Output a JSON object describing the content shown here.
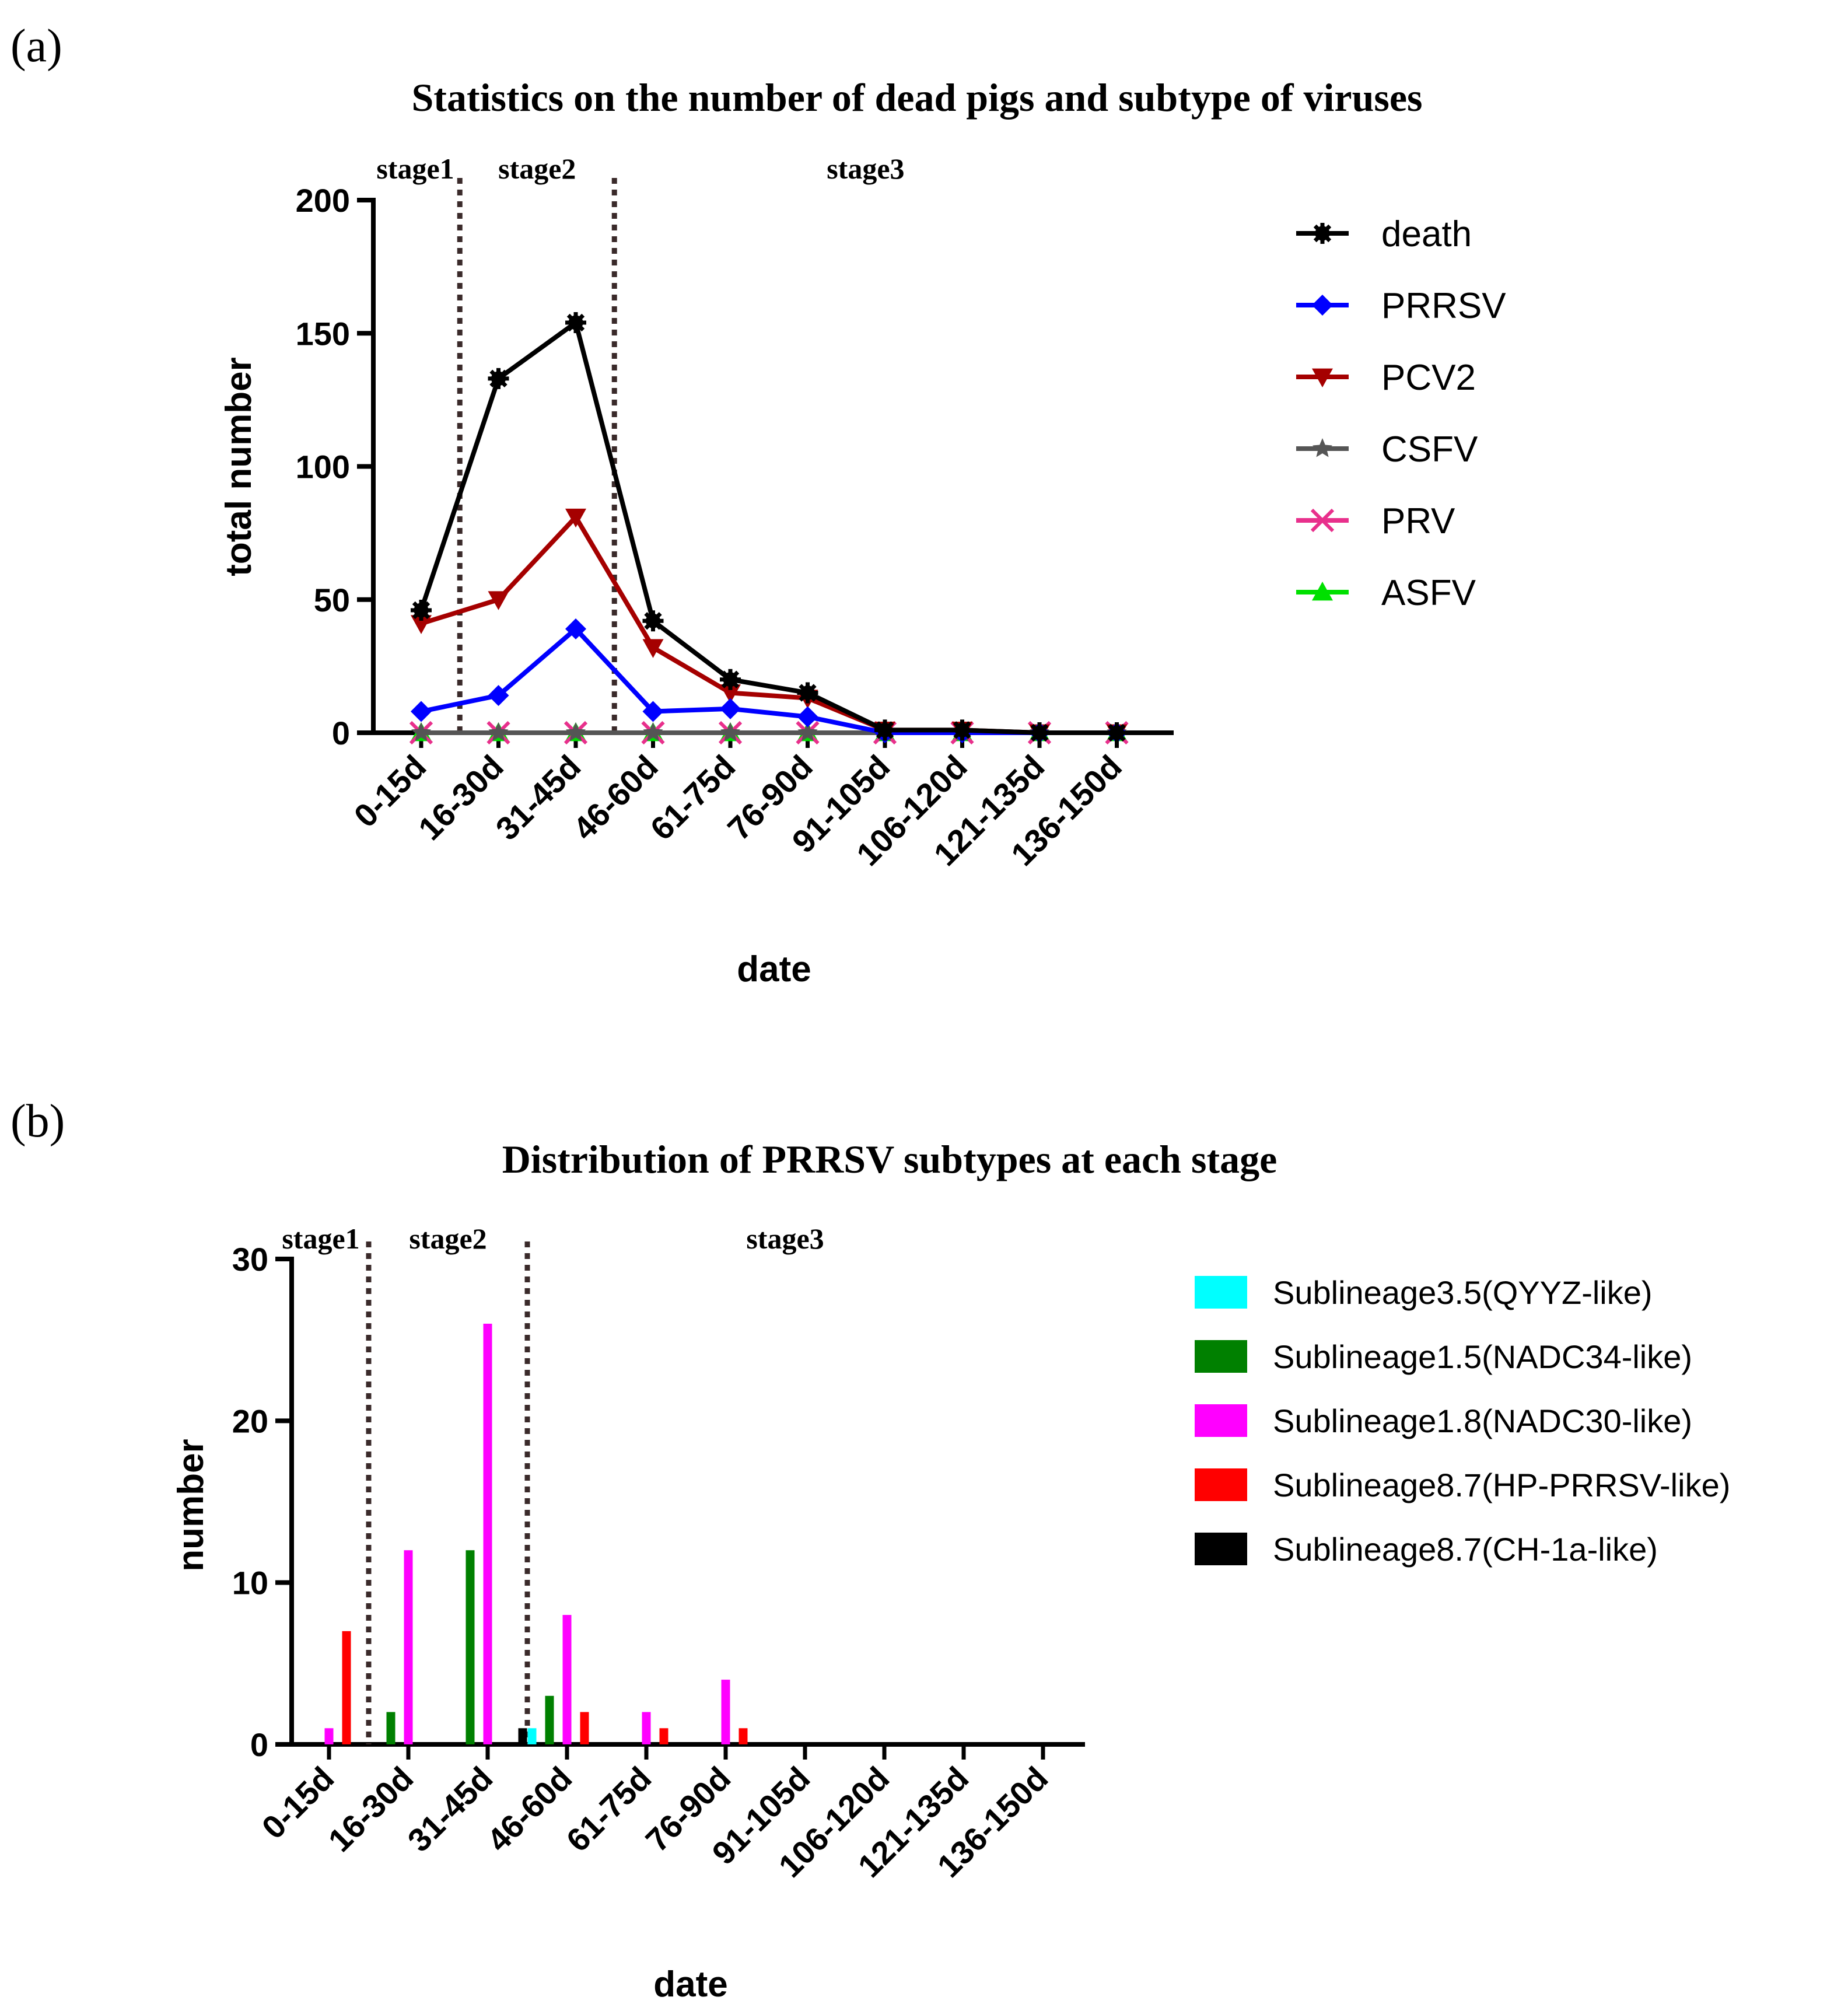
{
  "chart_data": [
    {
      "panel": "(a)",
      "type": "line",
      "title": "Statistics on the number of dead pigs and subtype of viruses",
      "xlabel": "date",
      "ylabel": "total number",
      "ylim": [
        0,
        200
      ],
      "yticks": [
        0,
        50,
        100,
        150,
        200
      ],
      "categories": [
        "0-15d",
        "16-30d",
        "31-45d",
        "46-60d",
        "61-75d",
        "76-90d",
        "91-105d",
        "106-120d",
        "121-135d",
        "136-150d"
      ],
      "stages": [
        {
          "label": "stage1",
          "from": 0,
          "to": 0.5
        },
        {
          "label": "stage2",
          "from": 0.5,
          "to": 2.5
        },
        {
          "label": "stage3",
          "from": 2.5,
          "to": 9
        }
      ],
      "series": [
        {
          "name": "death",
          "color": "#000000",
          "marker": "asterisk",
          "values": [
            46,
            133,
            154,
            42,
            20,
            15,
            1,
            1,
            0,
            0
          ]
        },
        {
          "name": "PRRSV",
          "color": "#0000ff",
          "marker": "diamond",
          "values": [
            8,
            14,
            39,
            8,
            9,
            6,
            0,
            0,
            0,
            0
          ]
        },
        {
          "name": "PCV2",
          "color": "#a50000",
          "marker": "triangle-down",
          "values": [
            41,
            50,
            81,
            32,
            15,
            13,
            1,
            1,
            0,
            0
          ]
        },
        {
          "name": "CSFV",
          "color": "#555555",
          "marker": "star",
          "values": [
            0,
            0,
            0,
            0,
            0,
            0,
            0,
            0,
            0,
            0
          ]
        },
        {
          "name": "PRV",
          "color": "#e8308c",
          "marker": "x",
          "values": [
            0,
            0,
            0,
            0,
            0,
            0,
            0,
            0,
            0,
            0
          ]
        },
        {
          "name": "ASFV",
          "color": "#00e000",
          "marker": "triangle-up",
          "values": [
            0,
            0,
            0,
            0,
            0,
            0,
            0,
            0,
            0,
            0
          ]
        }
      ],
      "legend": "right"
    },
    {
      "panel": "(b)",
      "type": "bar",
      "title": "Distribution of PRRSV subtypes at each stage",
      "xlabel": "date",
      "ylabel": "number",
      "ylim": [
        0,
        30
      ],
      "yticks": [
        0,
        10,
        20,
        30
      ],
      "categories": [
        "0-15d",
        "16-30d",
        "31-45d",
        "46-60d",
        "61-75d",
        "76-90d",
        "91-105d",
        "106-120d",
        "121-135d",
        "136-150d"
      ],
      "stages": [
        {
          "label": "stage1",
          "from": 0,
          "to": 0.5
        },
        {
          "label": "stage2",
          "from": 0.5,
          "to": 2.5
        },
        {
          "label": "stage3",
          "from": 2.5,
          "to": 9
        }
      ],
      "series": [
        {
          "name": "Sublineage3.5(QYYZ-like)",
          "color": "#00ffff",
          "values": [
            0,
            0,
            0,
            1,
            0,
            0,
            0,
            0,
            0,
            0
          ]
        },
        {
          "name": "Sublineage1.5(NADC34-like)",
          "color": "#008000",
          "values": [
            0,
            2,
            12,
            3,
            0,
            0,
            0,
            0,
            0,
            0
          ]
        },
        {
          "name": "Sublineage1.8(NADC30-like)",
          "color": "#ff00ff",
          "values": [
            1,
            12,
            26,
            8,
            2,
            4,
            0,
            0,
            0,
            0
          ]
        },
        {
          "name": "Sublineage8.7(HP-PRRSV-like)",
          "color": "#ff0000",
          "values": [
            7,
            0,
            0,
            2,
            1,
            1,
            0,
            0,
            0,
            0
          ]
        },
        {
          "name": "Sublineage8.7(CH-1a-like)",
          "color": "#000000",
          "values": [
            0,
            0,
            1,
            0,
            0,
            0,
            0,
            0,
            0,
            0
          ]
        }
      ],
      "legend": "right"
    }
  ]
}
